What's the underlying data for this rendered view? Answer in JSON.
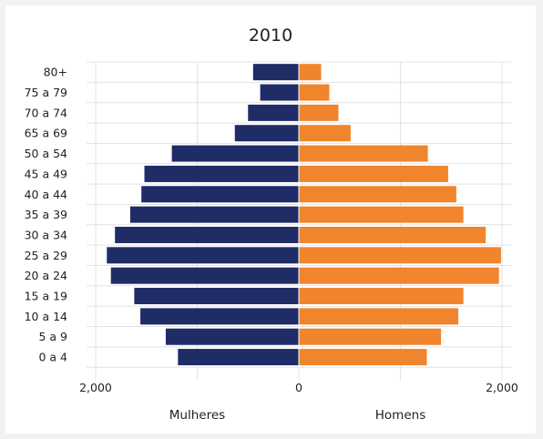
{
  "chart_data": {
    "type": "bar",
    "orientation": "horizontal",
    "title": "2010",
    "categories": [
      "80+",
      "75 a 79",
      "70 a 74",
      "65 a 69",
      "50 a 54",
      "45 a 49",
      "40 a 44",
      "35 a 39",
      "30 a 34",
      "25 a 29",
      "20 a 24",
      "15 a 19",
      "10 a 14",
      "5 a 9",
      "0 a 4"
    ],
    "series": [
      {
        "name": "Mulheres",
        "values": [
          450,
          380,
          500,
          630,
          1250,
          1520,
          1550,
          1660,
          1810,
          1890,
          1850,
          1620,
          1560,
          1310,
          1190
        ],
        "color": "#1f2c66",
        "side": "left"
      },
      {
        "name": "Homens",
        "values": [
          220,
          300,
          390,
          510,
          1270,
          1470,
          1550,
          1620,
          1840,
          1990,
          1970,
          1620,
          1570,
          1400,
          1260
        ],
        "color": "#f0852d",
        "side": "right"
      }
    ],
    "x_tick_labels": [
      "2,000",
      "0",
      "2,000"
    ],
    "xlim": [
      -2000,
      2000
    ],
    "grid": true,
    "legend": "bottom"
  }
}
